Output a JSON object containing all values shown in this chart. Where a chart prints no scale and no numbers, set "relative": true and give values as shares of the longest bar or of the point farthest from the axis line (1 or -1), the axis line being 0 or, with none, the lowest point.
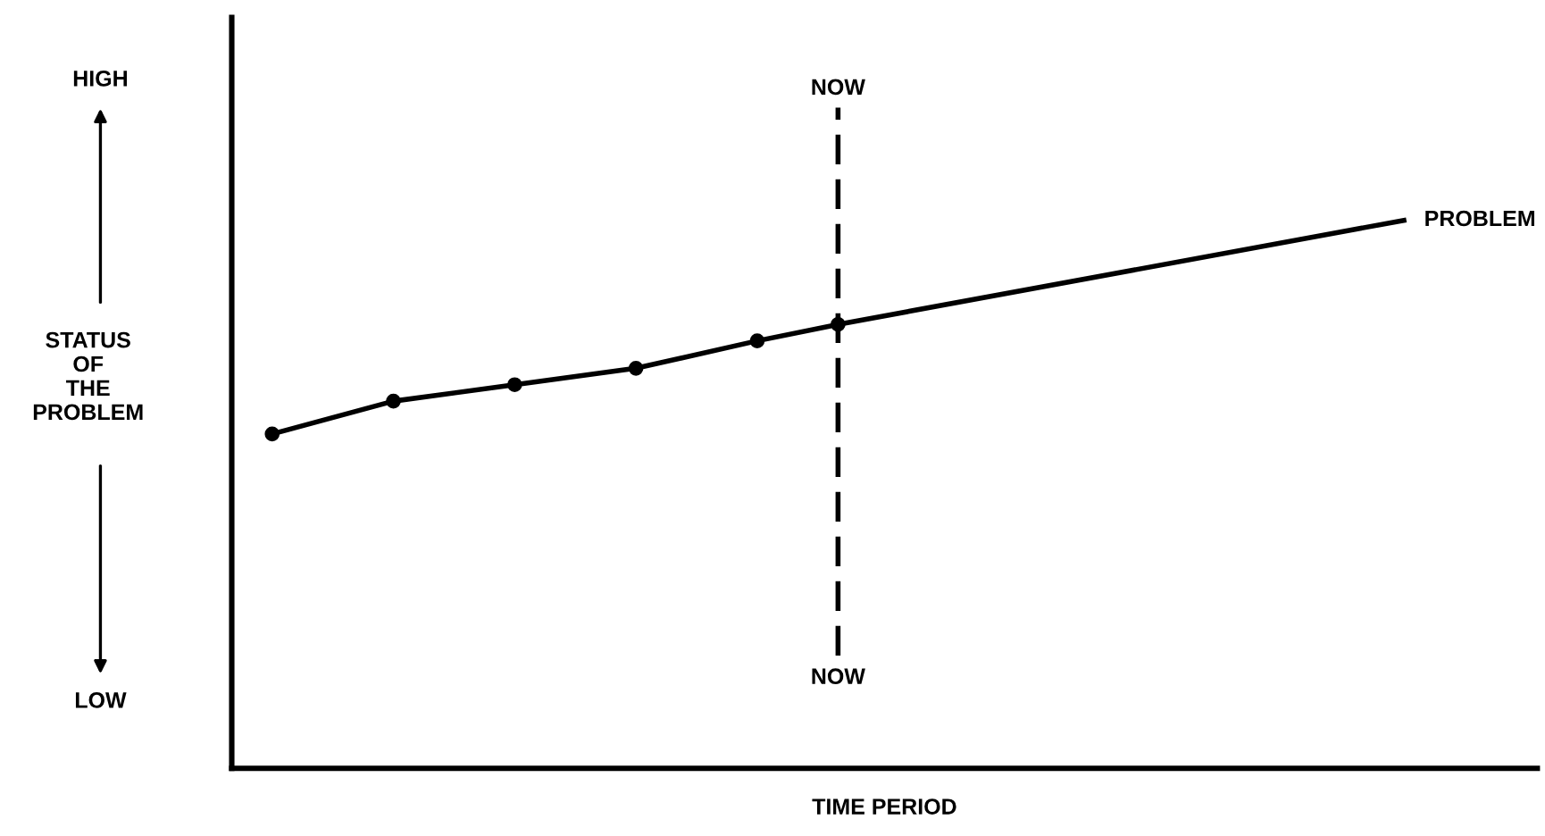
{
  "chart_data": {
    "type": "line",
    "xlabel": "TIME PERIOD",
    "ylabel": "STATUS\nOF\nTHE\nPROBLEM",
    "relative": true,
    "categories": [
      null,
      null,
      null,
      null,
      null,
      null,
      null,
      null,
      null,
      null,
      null,
      null,
      null,
      null,
      null,
      null,
      null,
      null,
      null,
      null,
      null,
      null,
      null,
      null,
      null,
      null,
      null,
      null,
      null
    ],
    "series": [
      {
        "color": "#000000",
        "marker": "circle",
        "values": [
          0.61,
          null,
          null,
          0.67,
          null,
          null,
          0.7,
          null,
          null,
          0.73,
          null,
          null,
          0.78,
          null,
          0.81,
          null,
          null,
          null,
          null,
          null,
          null,
          null,
          null,
          null,
          null,
          null,
          null,
          null,
          null
        ]
      },
      {
        "name": "PROBLEM",
        "color": "#000000",
        "marker": "none",
        "values": [
          null,
          null,
          null,
          null,
          null,
          null,
          null,
          null,
          null,
          null,
          null,
          null,
          null,
          null,
          0.81,
          null,
          null,
          null,
          null,
          null,
          null,
          null,
          null,
          null,
          null,
          null,
          null,
          null,
          1.0
        ]
      }
    ],
    "annotations": [
      "HIGH",
      "LOW",
      "NOW"
    ],
    "legend": false
  }
}
